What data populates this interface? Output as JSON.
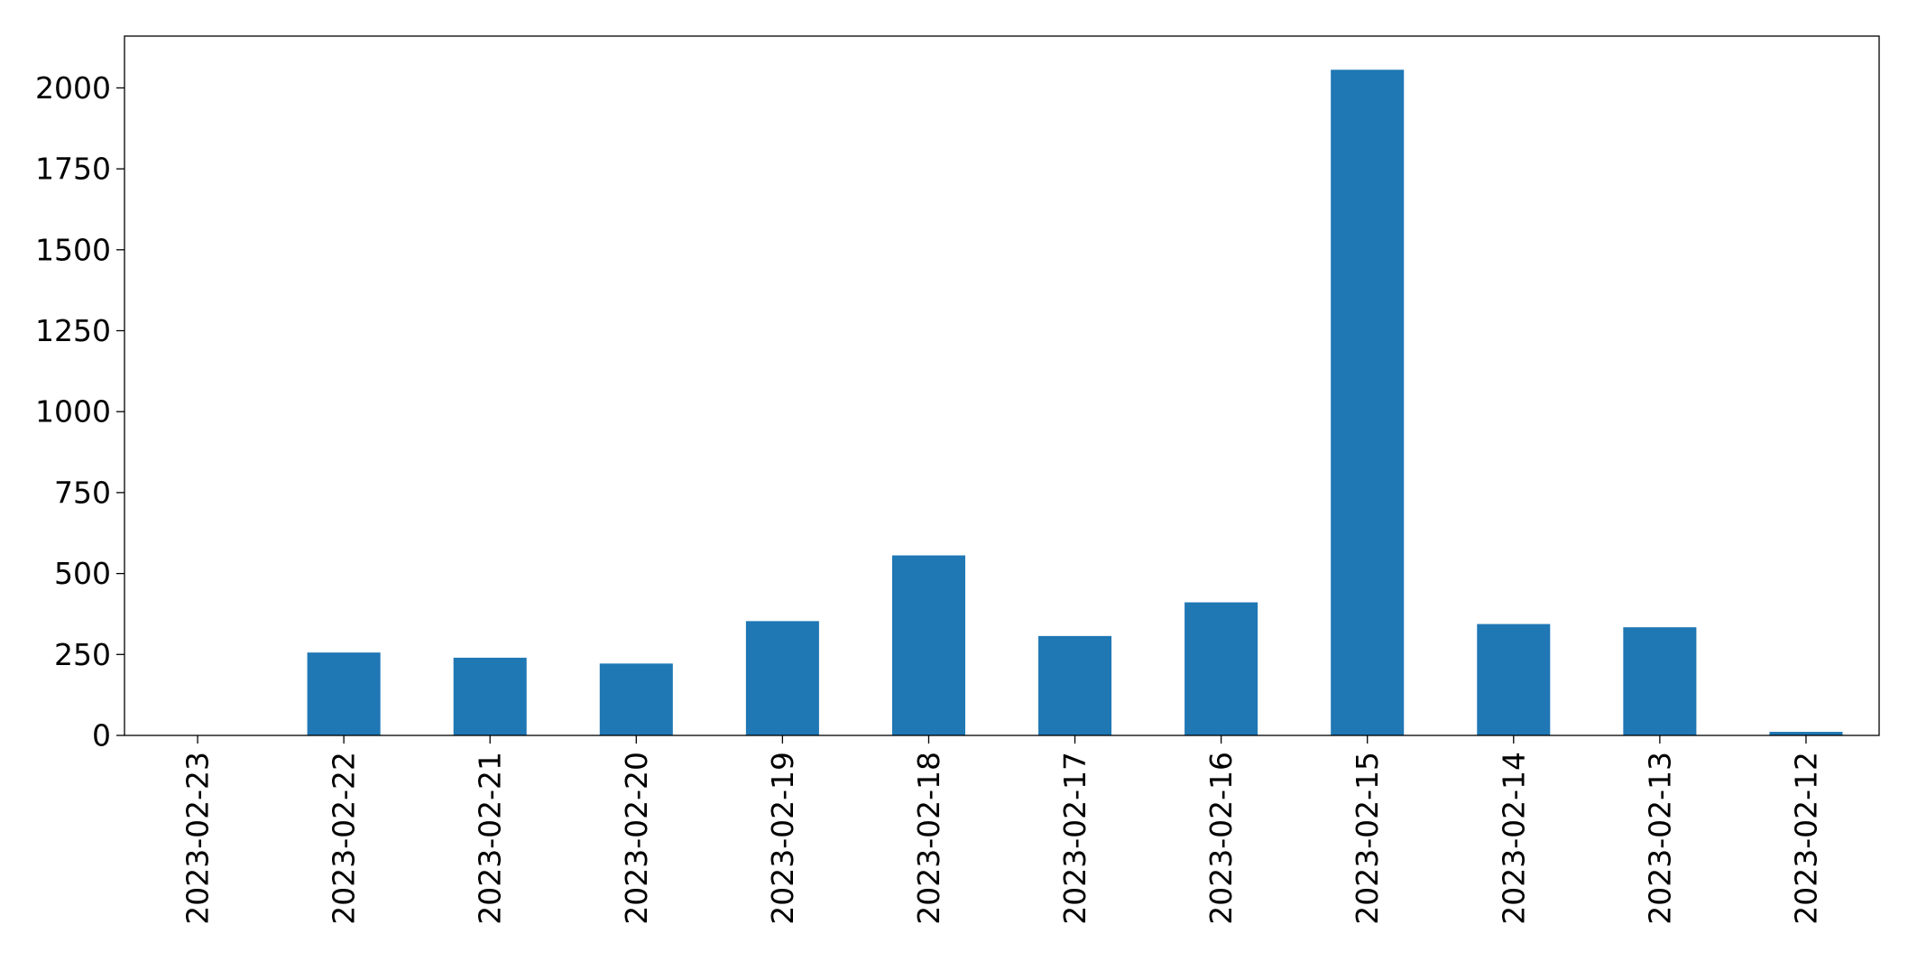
{
  "chart_data": {
    "type": "bar",
    "categories": [
      "2023-02-23",
      "2023-02-22",
      "2023-02-21",
      "2023-02-20",
      "2023-02-19",
      "2023-02-18",
      "2023-02-17",
      "2023-02-16",
      "2023-02-15",
      "2023-02-14",
      "2023-02-13",
      "2023-02-12"
    ],
    "values": [
      0,
      256,
      240,
      222,
      353,
      556,
      307,
      411,
      2056,
      344,
      334,
      11
    ],
    "title": "",
    "xlabel": "",
    "ylabel": "",
    "ylim": [
      0,
      2160
    ],
    "yticks": [
      0,
      250,
      500,
      750,
      1000,
      1250,
      1500,
      1750,
      2000
    ],
    "bar_color": "#1f77b4",
    "grid": false,
    "legend": "none"
  }
}
